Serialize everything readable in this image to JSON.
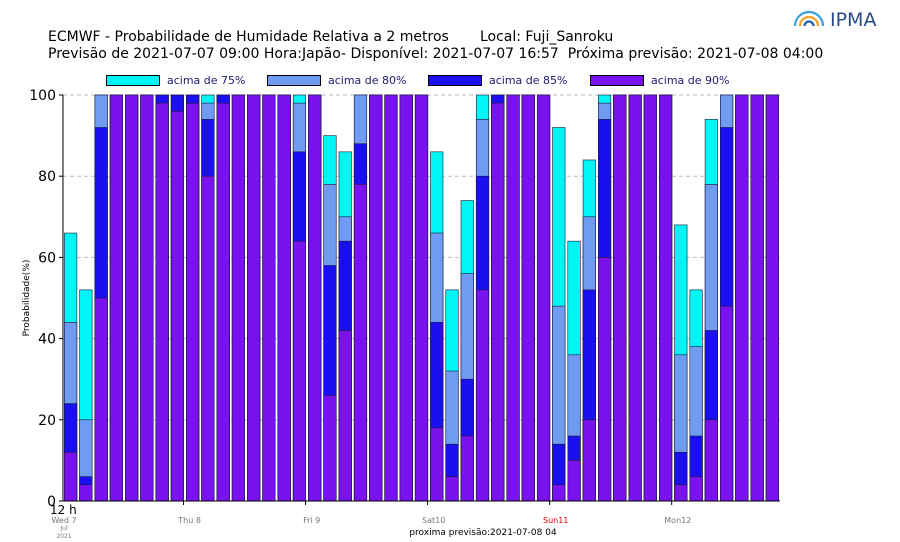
{
  "header": {
    "title_line1": "ECMWF - Probabilidade de Humidade Relativa a 2 metros       Local: Fuji_Sanroku",
    "title_line2": "Previsão de 2021-07-07 09:00 Hora:Japão- Disponível: 2021-07-07 16:57  Próxima previsão: 2021-07-08 04:00",
    "logo_text": "IPMA",
    "footer_text": "proxima previsão:2021-07-08 04"
  },
  "colors": {
    "p75": "#00f5f5",
    "p80": "#6f9cf0",
    "p85": "#1a0ff0",
    "p90": "#7a12f0",
    "sunday_label": "#e00000",
    "weekday_label": "#777777",
    "logo_arc1": "#3a9fe0",
    "logo_arc2": "#f2a020",
    "logo_arc3": "#2060b0"
  },
  "chart_data": {
    "type": "bar",
    "ylabel": "Probabilidade(%)",
    "ylim": [
      0,
      100
    ],
    "yticks": [
      0,
      20,
      40,
      60,
      80,
      100
    ],
    "grid": true,
    "legend_position": "top",
    "x_first_label": "12 h",
    "day_labels": [
      {
        "label": "Wed 7",
        "extra": [
          "Jul",
          "2021"
        ],
        "index": 0,
        "sunday": false
      },
      {
        "label": "Thu 8",
        "index": 8,
        "sunday": false
      },
      {
        "label": "Fri 9",
        "index": 16,
        "sunday": false
      },
      {
        "label": "Sat10",
        "index": 24,
        "sunday": false
      },
      {
        "label": "Sun11",
        "index": 32,
        "sunday": true
      },
      {
        "label": "Mon12",
        "index": 40,
        "sunday": false
      }
    ],
    "series": [
      {
        "name": "acima de 75%",
        "key": "p75",
        "values": [
          66,
          52,
          100,
          100,
          100,
          100,
          100,
          100,
          100,
          100,
          100,
          100,
          100,
          100,
          100,
          100,
          100,
          90,
          86,
          100,
          100,
          100,
          100,
          100,
          86,
          52,
          74,
          100,
          100,
          100,
          100,
          100,
          92,
          64,
          84,
          100,
          100,
          100,
          100,
          100,
          68,
          52,
          94,
          100,
          100,
          100,
          100
        ]
      },
      {
        "name": "acima de 80%",
        "key": "p80",
        "values": [
          44,
          20,
          100,
          100,
          100,
          100,
          100,
          100,
          100,
          98,
          100,
          100,
          100,
          100,
          100,
          98,
          100,
          78,
          70,
          100,
          100,
          100,
          100,
          100,
          66,
          32,
          56,
          94,
          100,
          100,
          100,
          100,
          48,
          36,
          70,
          98,
          100,
          100,
          100,
          100,
          36,
          38,
          78,
          100,
          100,
          100,
          100
        ]
      },
      {
        "name": "acima de 85%",
        "key": "p85",
        "values": [
          24,
          6,
          92,
          100,
          100,
          100,
          100,
          100,
          100,
          94,
          100,
          100,
          100,
          100,
          100,
          86,
          100,
          58,
          64,
          88,
          100,
          100,
          100,
          100,
          44,
          14,
          30,
          80,
          100,
          100,
          100,
          100,
          14,
          16,
          52,
          94,
          100,
          100,
          100,
          100,
          12,
          16,
          42,
          92,
          100,
          100,
          100
        ]
      },
      {
        "name": "acima de 90%",
        "key": "p90",
        "values": [
          12,
          4,
          50,
          100,
          100,
          100,
          98,
          96,
          98,
          80,
          98,
          100,
          100,
          100,
          100,
          64,
          100,
          26,
          42,
          78,
          100,
          100,
          100,
          100,
          18,
          6,
          16,
          52,
          98,
          100,
          100,
          100,
          4,
          10,
          20,
          60,
          100,
          100,
          100,
          100,
          4,
          6,
          20,
          48,
          100,
          100,
          100
        ]
      }
    ]
  }
}
